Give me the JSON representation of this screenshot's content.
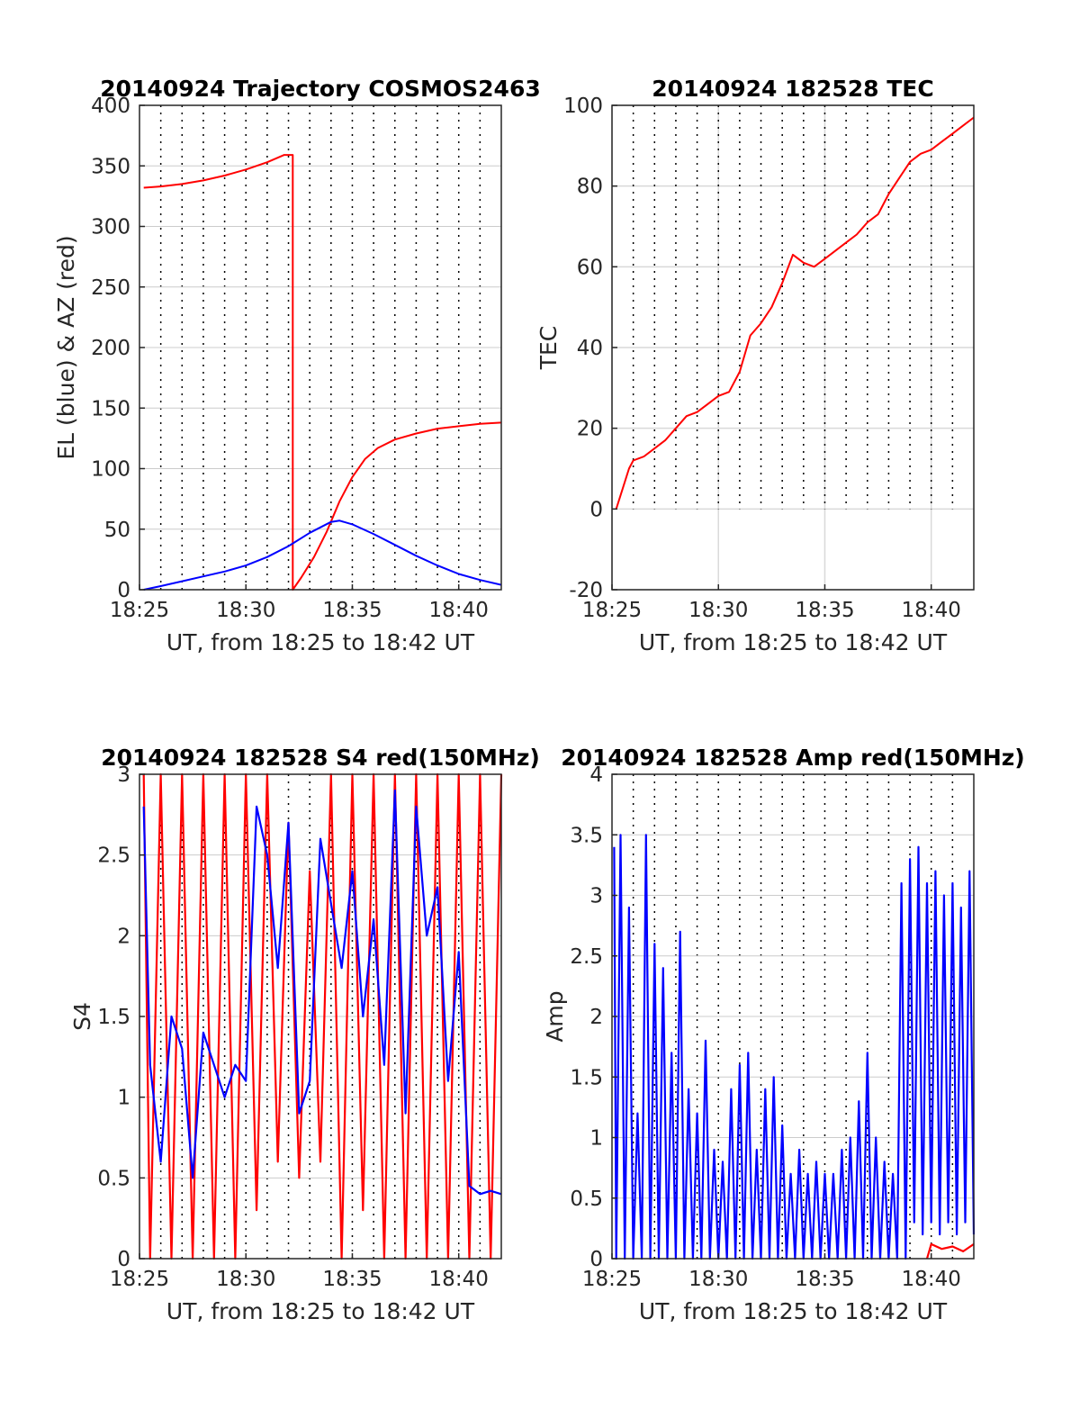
{
  "colors": {
    "azimuth": "#ff0000",
    "elevation": "#0000ff",
    "tec": "#ff0000",
    "s4_red": "#ff0000",
    "s4_blue": "#0000ff",
    "amp_red": "#ff0000",
    "amp_blue": "#0000ff",
    "grid_minor": "#000000",
    "grid_major": "#d9d9d9"
  },
  "chart_data": [
    {
      "type": "line",
      "title": "20140924 Trajectory COSMOS2463",
      "xlabel": "UT, from 18:25 to 18:42 UT",
      "ylabel": "EL (blue) & AZ (red)",
      "xlim_minutes": [
        0,
        17
      ],
      "x_ticks": [
        0,
        5,
        10,
        15
      ],
      "x_tick_labels": [
        "18:25",
        "18:30",
        "18:35",
        "18:40"
      ],
      "ylim": [
        0,
        400
      ],
      "y_ticks": [
        0,
        50,
        100,
        150,
        200,
        250,
        300,
        350,
        400
      ],
      "y_tick_labels": [
        "0",
        "50",
        "100",
        "150",
        "200",
        "250",
        "300",
        "350",
        "400"
      ],
      "minor_grid": "dotted, every 1 minute",
      "series": [
        {
          "color": "red",
          "x": [
            0.2,
            1,
            2,
            3,
            4,
            5,
            6,
            6.8,
            7.2,
            7.2,
            7.6,
            8.2,
            8.8,
            9.4,
            10.0,
            10.6,
            11.2,
            12,
            13,
            14,
            15,
            16,
            17
          ],
          "values": [
            332,
            333,
            335,
            338,
            342,
            347,
            353,
            359,
            359,
            0,
            10,
            27,
            48,
            73,
            93,
            108,
            117,
            124,
            129,
            133,
            135,
            137,
            138
          ]
        },
        {
          "color": "blue",
          "x": [
            0.2,
            1,
            2,
            3,
            4,
            5,
            6,
            7,
            8,
            9,
            9.4,
            10,
            11,
            12,
            13,
            14,
            15,
            16,
            17
          ],
          "values": [
            0,
            3,
            7,
            11,
            15,
            20,
            27,
            36,
            47,
            56,
            57,
            54,
            46,
            37,
            28,
            20,
            13,
            8,
            4
          ]
        }
      ]
    },
    {
      "type": "line",
      "title": "20140924 182528 TEC",
      "xlabel": "UT, from 18:25 to 18:42 UT",
      "ylabel": "TEC",
      "xlim_minutes": [
        0,
        17
      ],
      "x_ticks": [
        0,
        5,
        10,
        15
      ],
      "x_tick_labels": [
        "18:25",
        "18:30",
        "18:35",
        "18:40"
      ],
      "ylim": [
        -20,
        100
      ],
      "y_ticks": [
        -20,
        0,
        20,
        40,
        60,
        80,
        100
      ],
      "y_tick_labels": [
        "-20",
        "0",
        "20",
        "40",
        "60",
        "80",
        "100"
      ],
      "grid": "major solid grid plus dotted minute lines above 0",
      "series": [
        {
          "color": "red",
          "x": [
            0.2,
            0.5,
            0.8,
            1,
            1.5,
            2,
            2.5,
            3,
            3.5,
            4,
            4.5,
            5,
            5.5,
            6,
            6.5,
            7,
            7.5,
            8,
            8.5,
            9,
            9.5,
            10,
            10.5,
            11,
            11.5,
            12,
            12.5,
            13,
            13.5,
            14,
            14.5,
            15,
            15.5,
            16,
            16.5,
            17
          ],
          "values": [
            0,
            5,
            10,
            12,
            13,
            15,
            17,
            20,
            23,
            24,
            26,
            28,
            29,
            34,
            43,
            46,
            50,
            56,
            63,
            61,
            60,
            62,
            64,
            66,
            68,
            71,
            73,
            78,
            82,
            86,
            88,
            89,
            91,
            93,
            95,
            97
          ]
        }
      ]
    },
    {
      "type": "line",
      "title": "20140924 182528 S4 red(150MHz)",
      "xlabel": "UT, from 18:25 to 18:42 UT",
      "ylabel": "S4",
      "xlim_minutes": [
        0,
        17
      ],
      "x_ticks": [
        0,
        5,
        10,
        15
      ],
      "x_tick_labels": [
        "18:25",
        "18:30",
        "18:35",
        "18:40"
      ],
      "ylim": [
        0,
        3
      ],
      "y_ticks": [
        0,
        0.5,
        1,
        1.5,
        2,
        2.5,
        3
      ],
      "y_tick_labels": [
        "0",
        "0.5",
        "1",
        "1.5",
        "2",
        "2.5",
        "3"
      ],
      "series": [
        {
          "color": "red",
          "note_values": "dense oscillation, clipped at 0 and 3",
          "x": [
            0.2,
            0.5,
            1,
            1.5,
            2,
            2.5,
            3,
            3.5,
            4,
            4.5,
            5,
            5.5,
            6,
            6.5,
            7,
            7.5,
            8,
            8.5,
            9,
            9.5,
            10,
            10.5,
            11,
            11.5,
            12,
            12.5,
            13,
            13.5,
            14,
            14.5,
            15,
            15.5,
            16,
            16.5,
            17
          ],
          "values": [
            3,
            0,
            3,
            0,
            3,
            0,
            3,
            0,
            3,
            0,
            3,
            0.3,
            3,
            0.6,
            2.7,
            0.5,
            2.4,
            0.6,
            3,
            0,
            3,
            0.3,
            3,
            0,
            3,
            0,
            3,
            0,
            3,
            0,
            3,
            0,
            3,
            0,
            3
          ]
        },
        {
          "color": "blue",
          "x": [
            0.2,
            0.5,
            1,
            1.5,
            2,
            2.5,
            3,
            3.5,
            4,
            4.5,
            5,
            5.5,
            6,
            6.5,
            7,
            7.5,
            8,
            8.5,
            9,
            9.5,
            10,
            10.5,
            11,
            11.5,
            12,
            12.5,
            13,
            13.5,
            14,
            14.5,
            15,
            15.5,
            16,
            16.5,
            17
          ],
          "values": [
            2.8,
            1.2,
            0.6,
            1.5,
            1.3,
            0.5,
            1.4,
            1.2,
            1.0,
            1.2,
            1.1,
            2.8,
            2.5,
            1.8,
            2.7,
            0.9,
            1.1,
            2.6,
            2.2,
            1.8,
            2.4,
            1.5,
            2.1,
            1.2,
            2.9,
            0.9,
            2.8,
            2.0,
            2.3,
            1.1,
            1.9,
            0.45,
            0.4,
            0.42,
            0.4
          ]
        }
      ]
    },
    {
      "type": "line",
      "title": "20140924 182528 Amp red(150MHz)",
      "xlabel": "UT, from 18:25 to 18:42 UT",
      "ylabel": "Amp",
      "xlim_minutes": [
        0,
        17
      ],
      "x_ticks": [
        0,
        5,
        10,
        15
      ],
      "x_tick_labels": [
        "18:25",
        "18:30",
        "18:35",
        "18:40"
      ],
      "ylim": [
        0,
        4
      ],
      "y_ticks": [
        0,
        0.5,
        1,
        1.5,
        2,
        2.5,
        3,
        3.5,
        4
      ],
      "y_tick_labels": [
        "0",
        "0.5",
        "1",
        "1.5",
        "2",
        "2.5",
        "3",
        "3.5",
        "4"
      ],
      "series": [
        {
          "color": "blue",
          "x": [
            0.1,
            0.2,
            0.4,
            0.6,
            0.8,
            1.0,
            1.2,
            1.4,
            1.6,
            1.8,
            2.0,
            2.2,
            2.4,
            2.6,
            2.8,
            3.0,
            3.2,
            3.4,
            3.6,
            3.8,
            4.0,
            4.2,
            4.4,
            4.6,
            4.8,
            5.0,
            5.2,
            5.4,
            5.6,
            5.8,
            6.0,
            6.2,
            6.4,
            6.6,
            6.8,
            7.0,
            7.2,
            7.4,
            7.6,
            7.8,
            8.0,
            8.2,
            8.4,
            8.6,
            8.8,
            9.0,
            9.2,
            9.4,
            9.6,
            9.8,
            10.0,
            10.2,
            10.4,
            10.6,
            10.8,
            11.0,
            11.2,
            11.4,
            11.6,
            11.8,
            12.0,
            12.2,
            12.4,
            12.6,
            12.8,
            13.0,
            13.2,
            13.4,
            13.6,
            13.8,
            14.0,
            14.2,
            14.4,
            14.6,
            14.8,
            15.0,
            15.2,
            15.4,
            15.6,
            15.8,
            16.0,
            16.2,
            16.4,
            16.6,
            16.8,
            17.0
          ],
          "values": [
            3.4,
            0,
            3.5,
            0,
            2.9,
            0,
            1.2,
            0,
            3.5,
            0,
            2.6,
            0,
            2.4,
            0,
            1.7,
            0,
            2.7,
            0,
            1.4,
            0,
            1.2,
            0,
            1.8,
            0,
            0.9,
            0,
            0.8,
            0,
            1.4,
            0,
            1.6,
            0,
            1.7,
            0,
            0.9,
            0,
            1.4,
            0,
            1.5,
            0,
            1.1,
            0,
            0.7,
            0,
            0.9,
            0,
            0.7,
            0,
            0.8,
            0,
            0.7,
            0,
            0.7,
            0,
            0.9,
            0,
            1.0,
            0,
            1.3,
            0,
            1.7,
            0,
            1.0,
            0,
            0.8,
            0,
            0.7,
            0,
            3.1,
            0,
            3.3,
            0.3,
            3.4,
            0.2,
            3.1,
            0.3,
            3.2,
            0.2,
            3.0,
            0.3,
            3.1,
            0.2,
            2.9,
            0.3,
            3.2,
            0.2
          ]
        },
        {
          "color": "red",
          "x": [
            14.8,
            15.0,
            15.5,
            16.0,
            16.5,
            17.0
          ],
          "values": [
            0.0,
            0.12,
            0.08,
            0.1,
            0.06,
            0.12
          ]
        }
      ]
    }
  ]
}
